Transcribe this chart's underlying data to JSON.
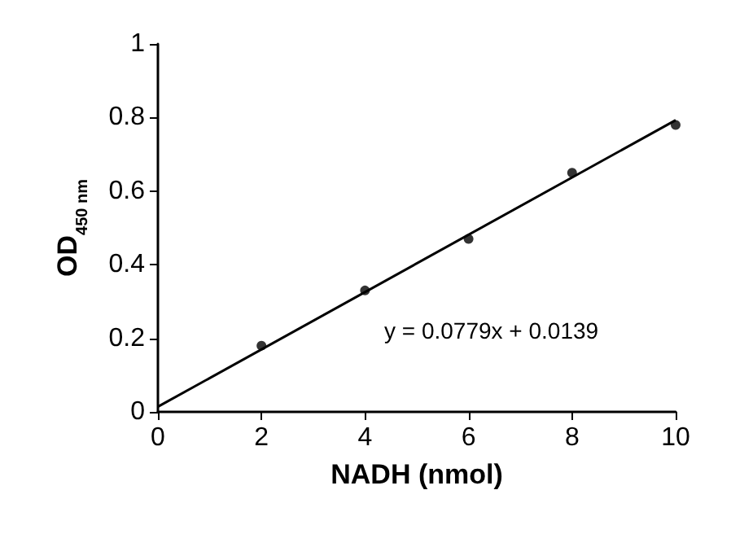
{
  "chart_data": {
    "type": "scatter",
    "xlabel": "NADH (nmol)",
    "ylabel": "OD$_{450 nm}$",
    "series": [
      {
        "color": "#000000",
        "marker": "circle",
        "x": [
          2,
          4,
          6,
          8,
          10
        ],
        "values": [
          0.18,
          0.33,
          0.47,
          0.65,
          0.78
        ]
      },
      {
        "type": "line",
        "marker": "none",
        "color": "#000000",
        "x": [
          0,
          10
        ],
        "values": [
          0.014,
          0.793
        ]
      }
    ],
    "xlim": [
      0,
      10
    ],
    "xticks": [
      0,
      2,
      4,
      6,
      8,
      10
    ],
    "ylim": [
      0,
      1
    ],
    "yticks": [
      0,
      0.2,
      0.4,
      0.6,
      0.8,
      1
    ],
    "annotations": [
      "y = 0.0779x + 0.0139"
    ]
  }
}
